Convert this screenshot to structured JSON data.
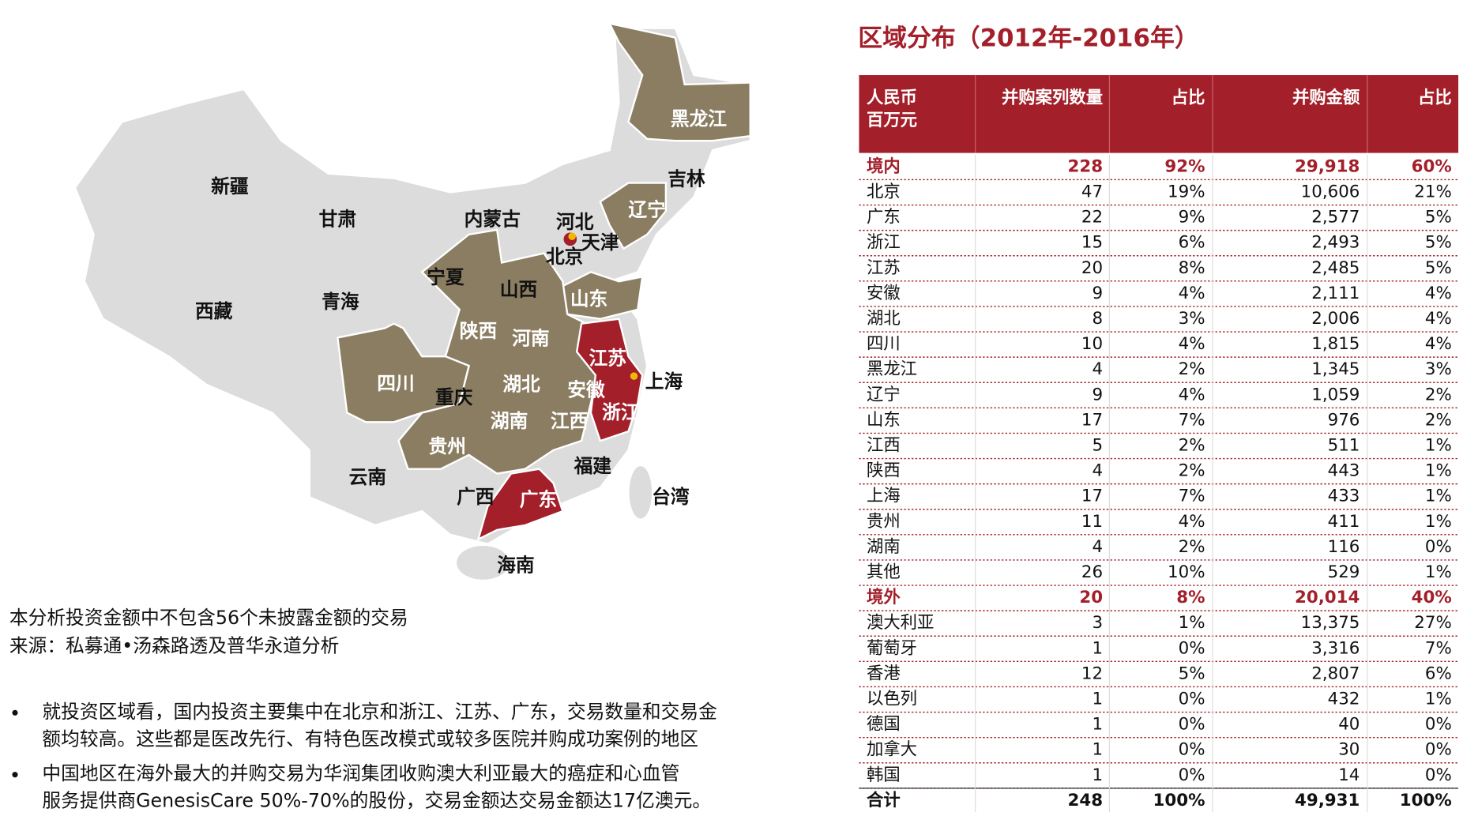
{
  "map": {
    "labels": [
      "黑龙江",
      "吉林",
      "辽宁",
      "新疆",
      "甘肃",
      "内蒙古",
      "河北",
      "天津",
      "北京",
      "宁夏",
      "山西",
      "山东",
      "西藏",
      "青海",
      "陕西",
      "河南",
      "江苏",
      "四川",
      "重庆",
      "湖北",
      "安徽",
      "上海",
      "浙江",
      "湖南",
      "江西",
      "贵州",
      "福建",
      "云南",
      "广西",
      "广东",
      "台湾",
      "海南"
    ]
  },
  "notes": [
    "本分析投资金额中不包含56个未披露金额的交易",
    "来源：私募通•汤森路透及普华永道分析"
  ],
  "bullets": [
    [
      "就投资区域看，国内投资主要集中在北京和浙江、江苏、广东，交易数量和交易金",
      "额均较高。这些都是医改先行、有特色医改模式或较多医院并购成功案例的地区"
    ],
    [
      "中国地区在海外最大的并购交易为华润集团收购澳大利亚最大的癌症和心血管",
      "服务提供商GenesisCare 50%-70%的股份，交易金额达交易金额达17亿澳元。"
    ]
  ],
  "table": {
    "title": "区域分布（2012年-2016年）",
    "header": [
      [
        "人民币",
        "百万元"
      ],
      [
        "并购案列数量"
      ],
      [
        "占比"
      ],
      [
        "并购金额"
      ],
      [
        "占比"
      ]
    ],
    "rows": [
      [
        "境内",
        "228",
        "92%",
        "29,918",
        "60%"
      ],
      [
        "北京",
        "47",
        "19%",
        "10,606",
        "21%"
      ],
      [
        "广东",
        "22",
        "9%",
        "2,577",
        "5%"
      ],
      [
        "浙江",
        "15",
        "6%",
        "2,493",
        "5%"
      ],
      [
        "江苏",
        "20",
        "8%",
        "2,485",
        "5%"
      ],
      [
        "安徽",
        "9",
        "4%",
        "2,111",
        "4%"
      ],
      [
        "湖北",
        "8",
        "3%",
        "2,006",
        "4%"
      ],
      [
        "四川",
        "10",
        "4%",
        "1,815",
        "4%"
      ],
      [
        "黑龙江",
        "4",
        "2%",
        "1,345",
        "3%"
      ],
      [
        "辽宁",
        "9",
        "4%",
        "1,059",
        "2%"
      ],
      [
        "山东",
        "17",
        "7%",
        "976",
        "2%"
      ],
      [
        "江西",
        "5",
        "2%",
        "511",
        "1%"
      ],
      [
        "陕西",
        "4",
        "2%",
        "443",
        "1%"
      ],
      [
        "上海",
        "17",
        "7%",
        "433",
        "1%"
      ],
      [
        "贵州",
        "11",
        "4%",
        "411",
        "1%"
      ],
      [
        "湖南",
        "4",
        "2%",
        "116",
        "0%"
      ],
      [
        "其他",
        "26",
        "10%",
        "529",
        "1%"
      ],
      [
        "境外",
        "20",
        "8%",
        "20,014",
        "40%"
      ],
      [
        "澳大利亚",
        "3",
        "1%",
        "13,375",
        "27%"
      ],
      [
        "葡萄牙",
        "1",
        "0%",
        "3,316",
        "7%"
      ],
      [
        "香港",
        "12",
        "5%",
        "2,807",
        "6%"
      ],
      [
        "以色列",
        "1",
        "0%",
        "432",
        "1%"
      ],
      [
        "德国",
        "1",
        "0%",
        "40",
        "0%"
      ],
      [
        "加拿大",
        "1",
        "0%",
        "30",
        "0%"
      ],
      [
        "韩国",
        "1",
        "0%",
        "14",
        "0%"
      ],
      [
        "合计",
        "248",
        "100%",
        "49,931",
        "100%"
      ]
    ]
  }
}
